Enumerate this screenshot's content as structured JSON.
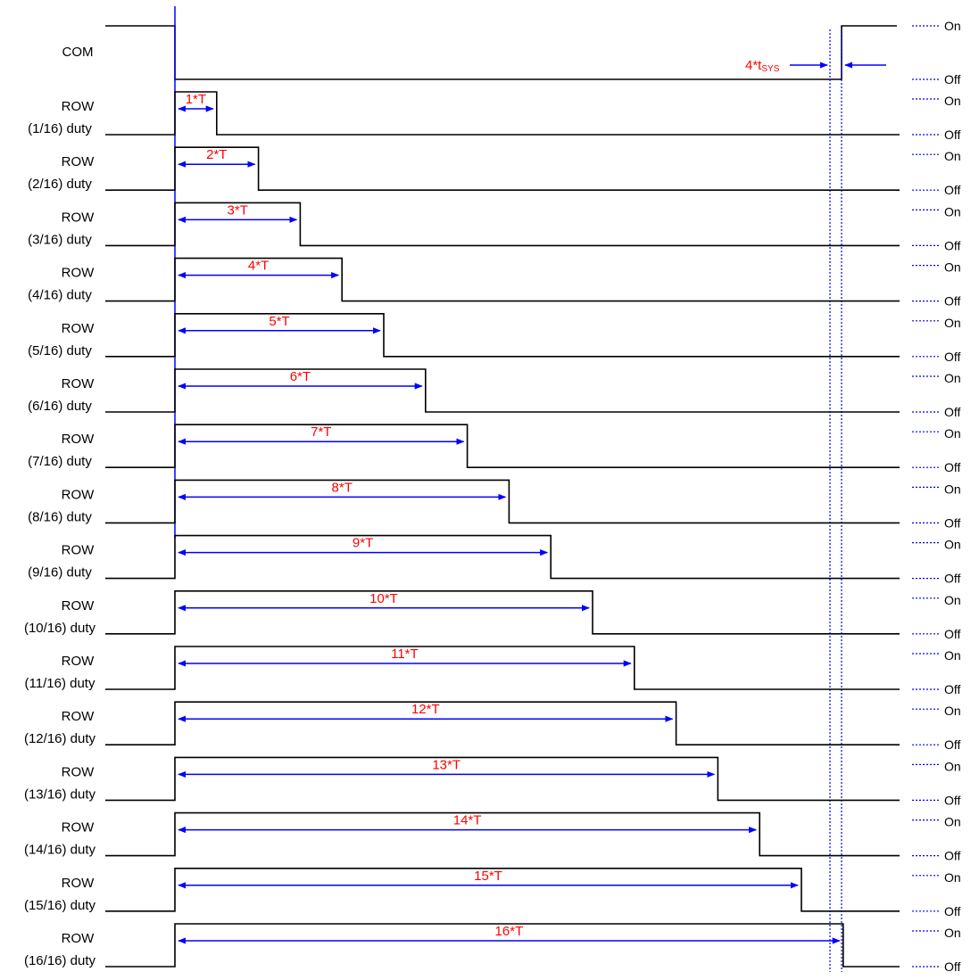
{
  "diagram": {
    "com": {
      "label": "COM",
      "on_label": "On",
      "off_label": "Off",
      "duration_label": "4*t",
      "duration_sub": "SYS"
    },
    "rows": [
      {
        "label_line1": "ROW",
        "label_line2": "(1/16) duty",
        "duration_label": "1*T",
        "duty": 1,
        "on_label": "On",
        "off_label": "Off"
      },
      {
        "label_line1": "ROW",
        "label_line2": "(2/16) duty",
        "duration_label": "2*T",
        "duty": 2,
        "on_label": "On",
        "off_label": "Off"
      },
      {
        "label_line1": "ROW",
        "label_line2": "(3/16) duty",
        "duration_label": "3*T",
        "duty": 3,
        "on_label": "On",
        "off_label": "Off"
      },
      {
        "label_line1": "ROW",
        "label_line2": "(4/16) duty",
        "duration_label": "4*T",
        "duty": 4,
        "on_label": "On",
        "off_label": "Off"
      },
      {
        "label_line1": "ROW",
        "label_line2": "(5/16) duty",
        "duration_label": "5*T",
        "duty": 5,
        "on_label": "On",
        "off_label": "Off"
      },
      {
        "label_line1": "ROW",
        "label_line2": "(6/16) duty",
        "duration_label": "6*T",
        "duty": 6,
        "on_label": "On",
        "off_label": "Off"
      },
      {
        "label_line1": "ROW",
        "label_line2": "(7/16) duty",
        "duration_label": "7*T",
        "duty": 7,
        "on_label": "On",
        "off_label": "Off"
      },
      {
        "label_line1": "ROW",
        "label_line2": "(8/16) duty",
        "duration_label": "8*T",
        "duty": 8,
        "on_label": "On",
        "off_label": "Off"
      },
      {
        "label_line1": "ROW",
        "label_line2": "(9/16) duty",
        "duration_label": "9*T",
        "duty": 9,
        "on_label": "On",
        "off_label": "Off"
      },
      {
        "label_line1": "ROW",
        "label_line2": "(10/16) duty",
        "duration_label": "10*T",
        "duty": 10,
        "on_label": "On",
        "off_label": "Off"
      },
      {
        "label_line1": "ROW",
        "label_line2": "(11/16) duty",
        "duration_label": "11*T",
        "duty": 11,
        "on_label": "On",
        "off_label": "Off"
      },
      {
        "label_line1": "ROW",
        "label_line2": "(12/16) duty",
        "duration_label": "12*T",
        "duty": 12,
        "on_label": "On",
        "off_label": "Off"
      },
      {
        "label_line1": "ROW",
        "label_line2": "(13/16) duty",
        "duration_label": "13*T",
        "duty": 13,
        "on_label": "On",
        "off_label": "Off"
      },
      {
        "label_line1": "ROW",
        "label_line2": "(14/16) duty",
        "duration_label": "14*T",
        "duty": 14,
        "on_label": "On",
        "off_label": "Off"
      },
      {
        "label_line1": "ROW",
        "label_line2": "(15/16) duty",
        "duration_label": "15*T",
        "duty": 15,
        "on_label": "On",
        "off_label": "Off"
      },
      {
        "label_line1": "ROW",
        "label_line2": "(16/16) duty",
        "duration_label": "16*T",
        "duty": 16,
        "on_label": "On",
        "off_label": "Off"
      }
    ],
    "colors": {
      "waveform": "#000000",
      "marker": "#0000ff",
      "duration_text": "#ff0000"
    }
  }
}
